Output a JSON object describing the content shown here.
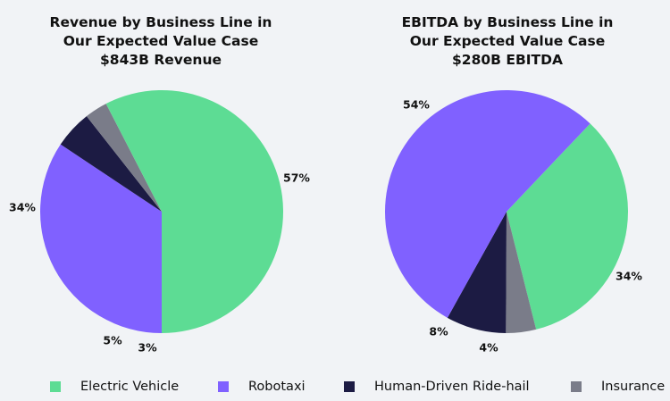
{
  "chart_data": [
    {
      "type": "pie",
      "title_lines": [
        "Revenue by Business Line in",
        "Our Expected Value Case",
        "$843B Revenue"
      ],
      "categories": [
        "Electric Vehicle",
        "Robotaxi",
        "Human-Driven Ride-hail",
        "Insurance"
      ],
      "values": [
        57,
        34,
        5,
        3
      ],
      "labels": [
        "57%",
        "34%",
        "5%",
        "3%"
      ]
    },
    {
      "type": "pie",
      "title_lines": [
        "EBITDA by Business Line in",
        "Our Expected Value Case",
        "$280B EBITDA"
      ],
      "categories": [
        "Electric Vehicle",
        "Robotaxi",
        "Human-Driven Ride-hail",
        "Insurance"
      ],
      "values": [
        34,
        54,
        8,
        4
      ],
      "labels": [
        "34%",
        "54%",
        "8%",
        "4%"
      ]
    }
  ],
  "legend": [
    {
      "label": "Electric Vehicle",
      "color": "#5ddc94"
    },
    {
      "label": "Robotaxi",
      "color": "#8061ff"
    },
    {
      "label": "Human-Driven Ride-hail",
      "color": "#1c1b43"
    },
    {
      "label": "Insurance",
      "color": "#7a7c89"
    }
  ]
}
